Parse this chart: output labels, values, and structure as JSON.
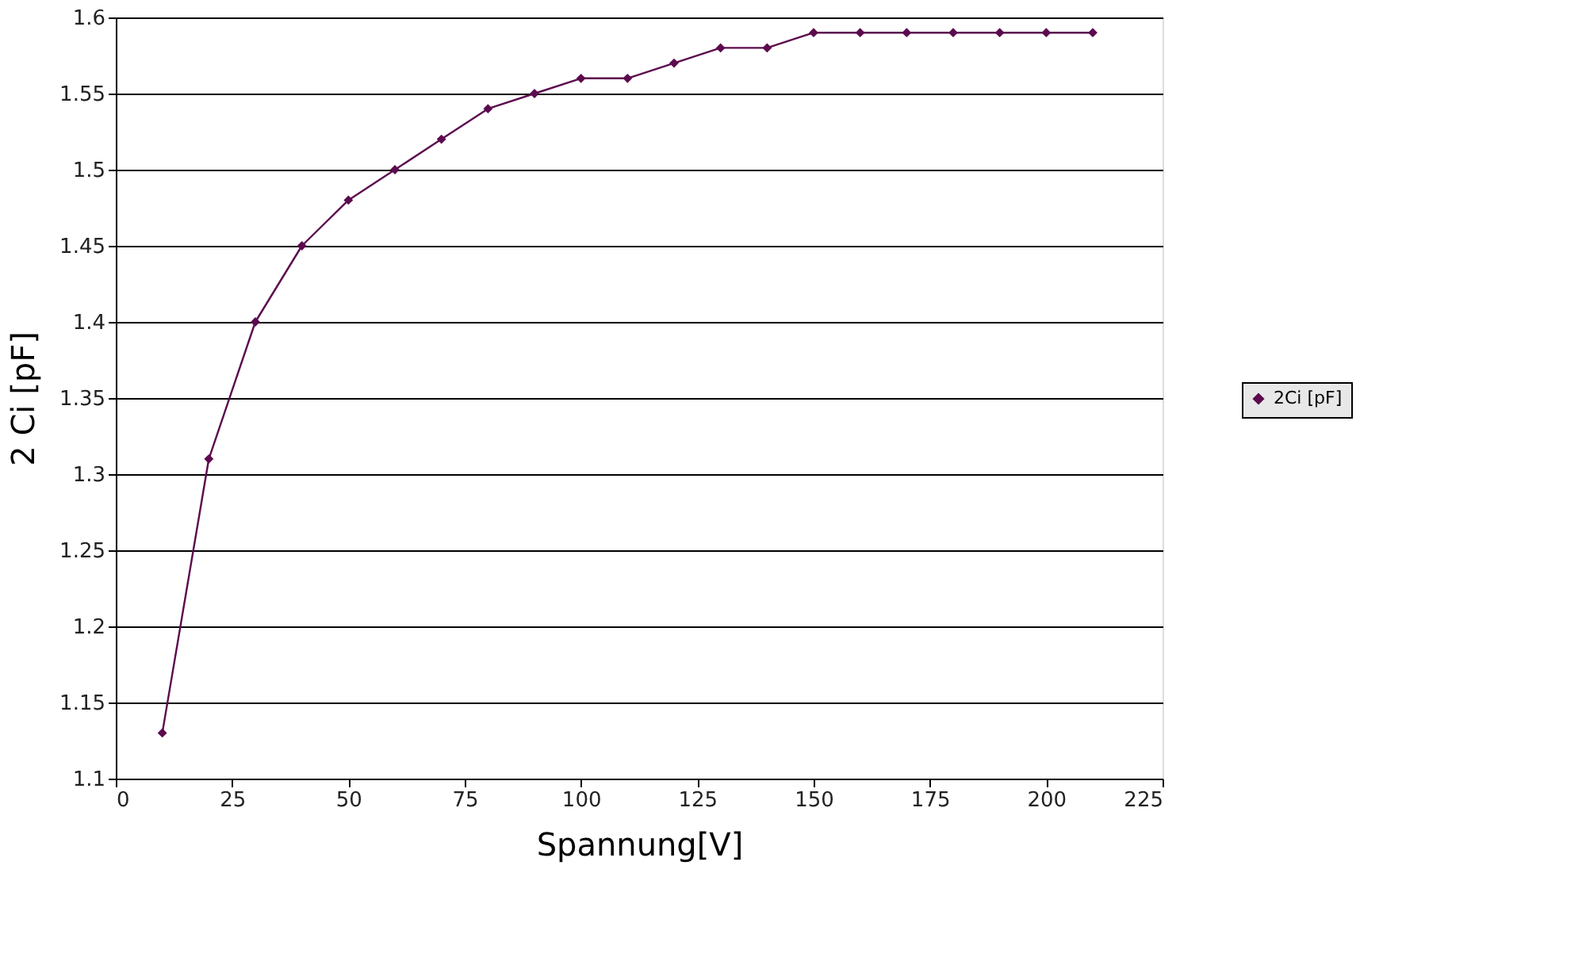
{
  "chart_data": {
    "type": "line",
    "xlabel": "Spannung[V]",
    "ylabel": "2 Ci [pF]",
    "x": [
      10,
      20,
      30,
      40,
      50,
      60,
      70,
      80,
      90,
      100,
      110,
      120,
      130,
      140,
      150,
      160,
      170,
      180,
      190,
      200,
      210
    ],
    "series": [
      {
        "name": "2Ci [pF]",
        "color": "#5c0a4e",
        "values": [
          1.13,
          1.31,
          1.4,
          1.45,
          1.48,
          1.5,
          1.52,
          1.54,
          1.55,
          1.56,
          1.56,
          1.57,
          1.58,
          1.58,
          1.59,
          1.59,
          1.59,
          1.59,
          1.59,
          1.59,
          1.59
        ]
      }
    ],
    "xlim": [
      0,
      225
    ],
    "xticks": [
      0,
      25,
      50,
      75,
      100,
      125,
      150,
      175,
      200,
      225
    ],
    "ylim": [
      1.1,
      1.6
    ],
    "yticks": [
      1.1,
      1.15,
      1.2,
      1.25,
      1.3,
      1.35,
      1.4,
      1.45,
      1.5,
      1.55,
      1.6
    ],
    "grid": "y",
    "legend": "right",
    "marker": "diamond",
    "line_style": "solid"
  }
}
